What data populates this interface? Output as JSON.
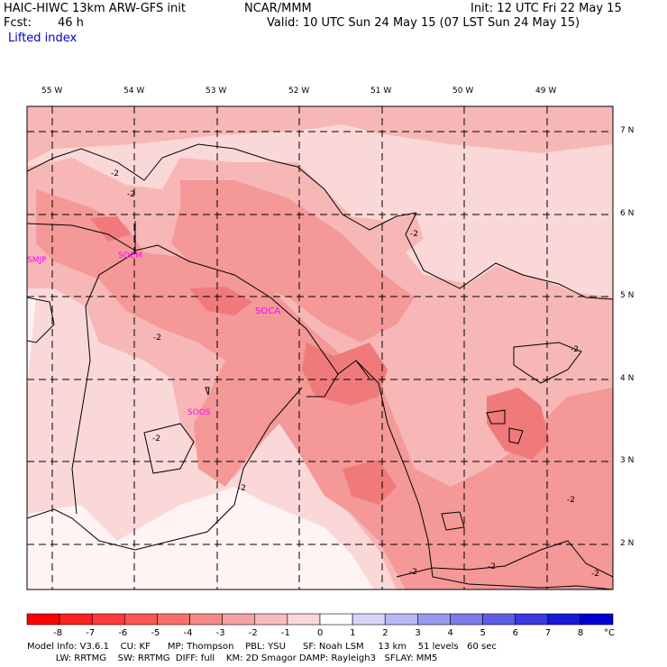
{
  "header": {
    "model": "HAIC-HIWC 13km ARW-GFS init",
    "institution": "NCAR/MMM",
    "init": "Init: 12 UTC Fri 22 May 15",
    "fcst_label": "Fcst:",
    "fcst_value": "46 h",
    "valid": "Valid: 10 UTC Sun 24 May 15 (07 LST Sun 24 May 15)",
    "field": "Lifted index"
  },
  "map": {
    "lon_labels": [
      "55 W",
      "54 W",
      "53 W",
      "52 W",
      "51 W",
      "50 W",
      "49 W"
    ],
    "lat_labels": [
      "7 N",
      "6 N",
      "5 N",
      "4 N",
      "3 N",
      "2 N"
    ],
    "stations": [
      "SMJP",
      "SOCM",
      "SOCA",
      "SOOS"
    ],
    "contour_labels": [
      "-2",
      "-2",
      "-2",
      "-2",
      "-2",
      "-2",
      "-2",
      "-2",
      "-2",
      "-2",
      "-2"
    ],
    "colors": {
      "level_m4": "#f07a7a",
      "level_m3": "#f49898",
      "level_m2": "#f7b7b7",
      "level_m1": "#fbd8d8",
      "level_0": "#fff3f3",
      "level_p1": "#dcdcf8"
    }
  },
  "colorbar": {
    "labels": [
      "-8",
      "-7",
      "-6",
      "-5",
      "-4",
      "-3",
      "-2",
      "-1",
      "0",
      "1",
      "2",
      "3",
      "4",
      "5",
      "6",
      "7",
      "8"
    ],
    "unit": "°C",
    "colors": [
      "#ff0000",
      "#ff2020",
      "#ff3a3a",
      "#fe5555",
      "#fb6e6e",
      "#f88888",
      "#f6a2a2",
      "#f8bcbc",
      "#fbd8d8",
      "#ffffff",
      "#d6d6fa",
      "#b8b8f5",
      "#9a9af0",
      "#7c7ceb",
      "#5d5de6",
      "#3a3ae0",
      "#1818db",
      "#0000d6"
    ]
  },
  "footer": {
    "line1": "Model Info: V3.6.1    CU: KF      MP: Thompson    PBL: YSU      SF: Noah LSM     13 km    51 levels   60 sec",
    "line2": "          LW: RRTMG    SW: RRTMG  DIFF: full    KM: 2D Smagor DAMP: Rayleigh3   SFLAY: MM5"
  }
}
